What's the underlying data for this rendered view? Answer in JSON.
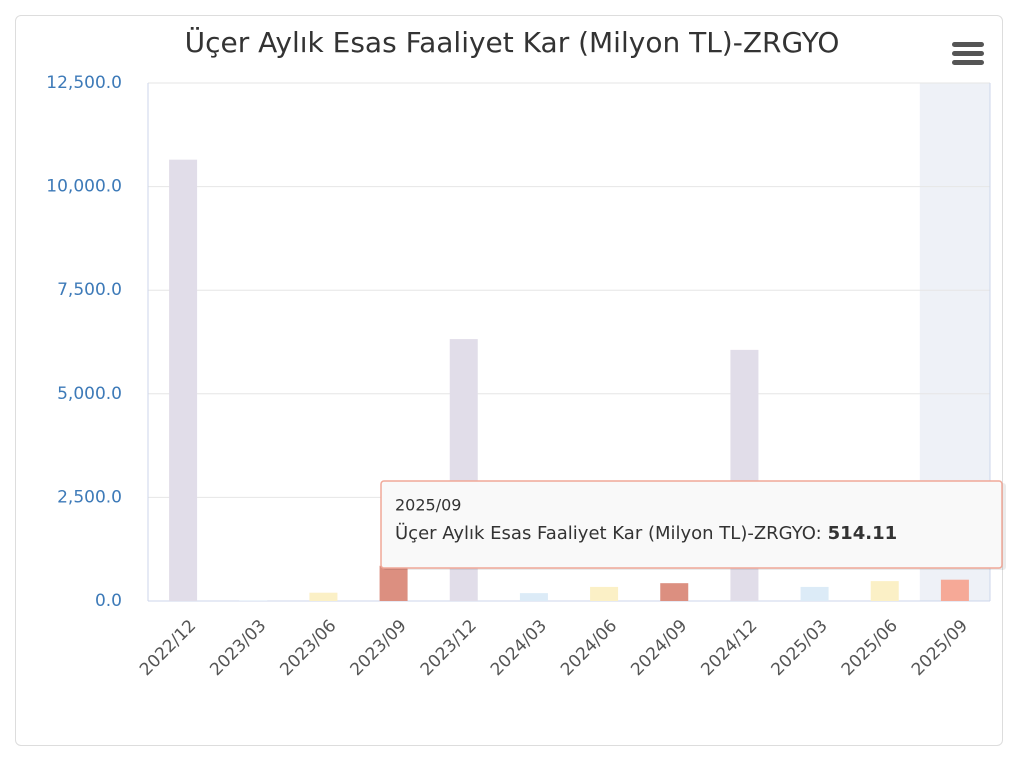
{
  "chart_data": {
    "type": "bar",
    "title": "Üçer Aylık Esas Faaliyet Kar (Milyon TL)-ZRGYO",
    "categories": [
      "2022/12",
      "2023/03",
      "2023/06",
      "2023/09",
      "2023/12",
      "2024/03",
      "2024/06",
      "2024/09",
      "2024/12",
      "2025/03",
      "2025/06",
      "2025/09"
    ],
    "values": [
      10650,
      10,
      200,
      850,
      6320,
      190,
      340,
      430,
      6060,
      340,
      480,
      514.11
    ],
    "colors": [
      "#e1dde9",
      "#dcebf7",
      "#fbf0c6",
      "#dc8f80",
      "#e1dde9",
      "#dcebf7",
      "#fbf0c6",
      "#dc8f80",
      "#e1dde9",
      "#dcebf7",
      "#fbf0c6",
      "#f6a997"
    ],
    "ylim": [
      0,
      12500
    ],
    "yticks": [
      {
        "value": 0,
        "label": "0.0"
      },
      {
        "value": 2500,
        "label": "2,500.0"
      },
      {
        "value": 5000,
        "label": "5,000.0"
      },
      {
        "value": 7500,
        "label": "7,500.0"
      },
      {
        "value": 10000,
        "label": "10,000.0"
      },
      {
        "value": 12500,
        "label": "12,500.0"
      }
    ],
    "grid": true,
    "tooltip": {
      "label": "Üçer Aylık Esas Faaliyet Kar (Milyon TL)-ZRGYO:"
    }
  }
}
